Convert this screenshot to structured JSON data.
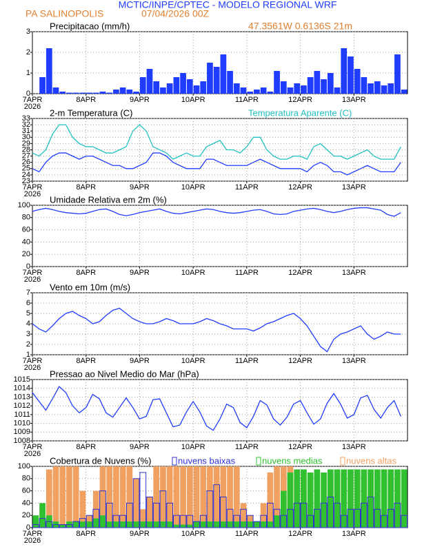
{
  "header": {
    "title": "MCTIC/INPE/CPTEC - MODELO REGIONAL WRF",
    "station": "PA SALINOPOLIS",
    "datetime": "07/04/2026 00Z",
    "location": "47.3561W 0.6136S 21m"
  },
  "x_axis": {
    "xlim": [
      0,
      168
    ],
    "xticks": [
      {
        "value": 0,
        "label": "7APR"
      },
      {
        "value": 24,
        "label": "8APR"
      },
      {
        "value": 48,
        "label": "9APR"
      },
      {
        "value": 72,
        "label": "10APR"
      },
      {
        "value": 96,
        "label": "11APR"
      },
      {
        "value": 120,
        "label": "12APR"
      },
      {
        "value": 144,
        "label": "13APR"
      }
    ],
    "year": "2026",
    "x": [
      0,
      3,
      6,
      9,
      12,
      15,
      18,
      21,
      24,
      27,
      30,
      33,
      36,
      39,
      42,
      45,
      48,
      51,
      54,
      57,
      60,
      63,
      66,
      69,
      72,
      75,
      78,
      81,
      84,
      87,
      90,
      93,
      96,
      99,
      102,
      105,
      108,
      111,
      114,
      117,
      120,
      123,
      126,
      129,
      132,
      135,
      138,
      141,
      144,
      147,
      150,
      153,
      156,
      159,
      162,
      165
    ],
    "bar_width": 3
  },
  "chart_data": [
    {
      "type": "bar",
      "title": "Precipitacao (mm/h)",
      "ylim": [
        0,
        3
      ],
      "yticks": [
        0,
        1,
        2,
        3
      ],
      "grid": true,
      "series": [
        {
          "color": "#1f3cff",
          "values": [
            0,
            0.8,
            2.2,
            0.3,
            0.1,
            0.05,
            0.05,
            0.05,
            0.05,
            0.05,
            0.1,
            0.05,
            0.2,
            0.3,
            0.2,
            0.1,
            0.8,
            1.2,
            0.6,
            0.3,
            0.5,
            0.8,
            1.0,
            0.7,
            0.4,
            0.6,
            1.5,
            1.3,
            1.9,
            1.1,
            0.5,
            0.3,
            0.1,
            0.2,
            0.3,
            0.1,
            1.1,
            0.6,
            0.3,
            0.5,
            0.4,
            0.8,
            1.1,
            0.7,
            1.0,
            0.3,
            2.2,
            1.8,
            1.2,
            0.8,
            0.5,
            0.6,
            0.4,
            0.5,
            1.9,
            0.2
          ]
        }
      ]
    },
    {
      "type": "line",
      "title": "2-m Temperatura (C)",
      "ylim": [
        23,
        33
      ],
      "yticks": [
        23,
        24,
        25,
        26,
        27,
        28,
        29,
        30,
        31,
        32,
        33
      ],
      "grid": true,
      "series": [
        {
          "color": "#1f3cff",
          "values": [
            25,
            24.5,
            26,
            27,
            27.5,
            27.5,
            27,
            26.5,
            27,
            27,
            26.5,
            26,
            25.5,
            25.5,
            25,
            25,
            25.5,
            26,
            27.5,
            27.5,
            27,
            26,
            25.5,
            25,
            25,
            25,
            26.5,
            26.5,
            26,
            25.5,
            25.5,
            25.5,
            25.5,
            26,
            26.5,
            26,
            25.5,
            25,
            25,
            25,
            25,
            24.5,
            25.5,
            26,
            25.5,
            24.5,
            24.5,
            24,
            24.5,
            25,
            25.5,
            25,
            24.5,
            24.5,
            24.5,
            26
          ]
        },
        {
          "name": "Temperatura Aparente (C)",
          "color": "#20c0c0",
          "values": [
            27.5,
            27,
            28,
            30.5,
            32,
            32,
            30,
            29,
            28.5,
            28.5,
            28,
            27.5,
            27.5,
            28,
            28.5,
            31,
            32,
            31,
            28.5,
            28,
            27.5,
            26.5,
            27,
            27.5,
            27,
            27,
            28.5,
            29,
            29.5,
            28,
            28,
            27.5,
            28.5,
            30,
            30,
            28,
            27,
            26.5,
            26.5,
            27,
            27,
            26.5,
            28.5,
            29,
            28,
            27,
            27,
            26.5,
            27,
            27.5,
            28,
            27,
            26.5,
            26.5,
            26.5,
            28.5
          ]
        }
      ]
    },
    {
      "type": "line",
      "title": "Umidade Relativa em 2m (%)",
      "ylim": [
        0,
        100
      ],
      "yticks": [
        0,
        20,
        40,
        60,
        80,
        100
      ],
      "grid": true,
      "series": [
        {
          "color": "#1f3cff",
          "values": [
            90,
            93,
            95,
            93,
            90,
            88,
            87,
            86,
            87,
            90,
            93,
            94,
            90,
            85,
            83,
            85,
            88,
            90,
            92,
            94,
            90,
            87,
            86,
            88,
            90,
            92,
            94,
            93,
            90,
            88,
            87,
            88,
            90,
            92,
            93,
            90,
            86,
            85,
            86,
            90,
            92,
            94,
            95,
            93,
            90,
            88,
            90,
            93,
            95,
            96,
            96,
            94,
            92,
            85,
            82,
            88
          ]
        }
      ]
    },
    {
      "type": "line",
      "title": "Vento em 10m (m/s)",
      "ylim": [
        1,
        7
      ],
      "yticks": [
        1,
        2,
        3,
        4,
        5,
        6,
        7
      ],
      "grid": true,
      "series": [
        {
          "color": "#1f3cff",
          "values": [
            4,
            3.5,
            3.2,
            3.8,
            4.5,
            5,
            5.2,
            4.8,
            4.5,
            4,
            4.2,
            4.8,
            5.3,
            5.5,
            5,
            4.5,
            4.2,
            4,
            4,
            4.2,
            4.5,
            4.3,
            4,
            4,
            4,
            4.2,
            4.5,
            4.3,
            4,
            3.8,
            3.5,
            3.5,
            3.5,
            3.3,
            3.6,
            4,
            4.2,
            4.5,
            4.8,
            5,
            4.5,
            3.8,
            2.8,
            1.8,
            1.3,
            2.5,
            3,
            3.2,
            3.5,
            3.8,
            3,
            2.5,
            2.8,
            3.2,
            3,
            3
          ]
        }
      ]
    },
    {
      "type": "line",
      "title": "Pressao ao Nivel Medio do Mar (hPa)",
      "ylim": [
        1008,
        1015
      ],
      "yticks": [
        1008,
        1009,
        1010,
        1011,
        1012,
        1013,
        1014,
        1015
      ],
      "grid": true,
      "series": [
        {
          "color": "#1f3cff",
          "values": [
            1013.5,
            1012.5,
            1011.5,
            1012.8,
            1014.2,
            1013.5,
            1012,
            1011.2,
            1011.8,
            1013.3,
            1012.8,
            1011.2,
            1010.7,
            1011.8,
            1012.9,
            1011.8,
            1010.5,
            1010.8,
            1012.7,
            1012.8,
            1011.2,
            1009.6,
            1009.8,
            1011.3,
            1012.5,
            1011.3,
            1009.7,
            1009.2,
            1010.5,
            1012.2,
            1011.8,
            1010.1,
            1009.5,
            1010.8,
            1012.6,
            1012.1,
            1010.5,
            1009.8,
            1010.7,
            1012.2,
            1012.6,
            1011.2,
            1009.9,
            1010.5,
            1012.3,
            1013.4,
            1012.2,
            1010.6,
            1011,
            1012.9,
            1013.2,
            1011.6,
            1010.6,
            1011.8,
            1012.6,
            1010.8
          ]
        }
      ]
    },
    {
      "type": "bar",
      "title": "Cobertura de Nuvens (%)",
      "ylim": [
        0,
        100
      ],
      "yticks": [
        0,
        20,
        40,
        60,
        80,
        100
      ],
      "grid": true,
      "series": [
        {
          "name": "nuvens baixas",
          "color": "#3030d0",
          "values": [
            5,
            15,
            10,
            5,
            5,
            5,
            10,
            15,
            20,
            30,
            60,
            40,
            20,
            20,
            40,
            80,
            90,
            50,
            40,
            60,
            40,
            20,
            20,
            20,
            10,
            20,
            60,
            70,
            50,
            30,
            20,
            30,
            20,
            10,
            20,
            40,
            30,
            20,
            30,
            40,
            40,
            20,
            30,
            40,
            50,
            40,
            20,
            30,
            30,
            40,
            50,
            30,
            20,
            30,
            40,
            20
          ]
        },
        {
          "name": "nuvens medias",
          "color": "#30c030",
          "values": [
            20,
            40,
            20,
            10,
            5,
            10,
            10,
            10,
            10,
            15,
            20,
            10,
            10,
            10,
            10,
            10,
            10,
            10,
            10,
            10,
            10,
            5,
            5,
            5,
            10,
            10,
            10,
            10,
            10,
            10,
            10,
            10,
            10,
            10,
            10,
            10,
            20,
            60,
            90,
            95,
            95,
            90,
            95,
            90,
            95,
            95,
            95,
            95,
            95,
            95,
            95,
            95,
            95,
            95,
            95,
            95
          ]
        },
        {
          "name": "nuvens altas",
          "color": "#f0a060",
          "values": [
            10,
            40,
            95,
            100,
            100,
            100,
            100,
            60,
            20,
            60,
            100,
            100,
            100,
            100,
            100,
            80,
            30,
            50,
            100,
            100,
            100,
            100,
            100,
            100,
            100,
            100,
            100,
            100,
            100,
            100,
            100,
            40,
            20,
            10,
            40,
            90,
            100,
            100,
            100,
            80,
            60,
            40,
            30,
            20,
            20,
            20,
            10,
            10,
            5,
            5,
            10,
            10,
            20,
            20,
            30,
            20
          ]
        }
      ]
    }
  ]
}
